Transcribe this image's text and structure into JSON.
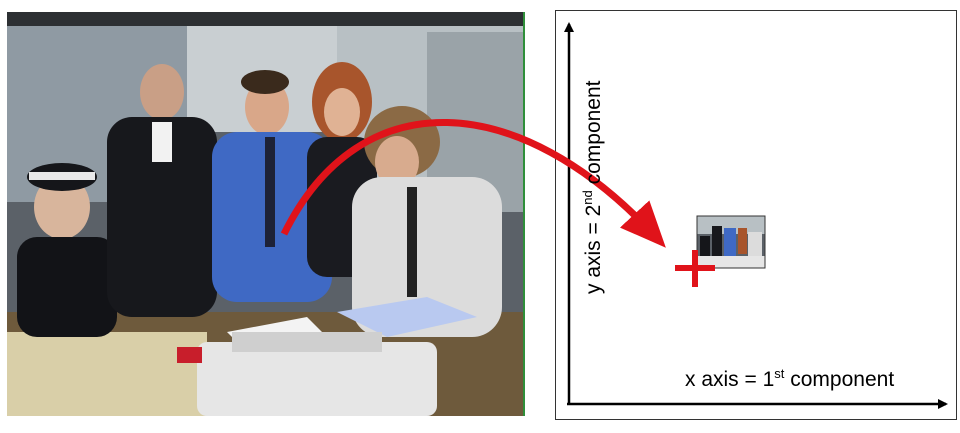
{
  "diagram": {
    "x_axis_label": {
      "prefix": "x axis = 1",
      "sup": "st",
      "suffix": " component"
    },
    "y_axis_label": {
      "prefix": "y axis = 2",
      "sup": "nd",
      "suffix": " component"
    },
    "colors": {
      "arrow": "#e0131a",
      "axis": "#000000",
      "photo_border": "#2f8f3a"
    },
    "icons": [
      "curved-arrow",
      "plus-marker",
      "thumbnail"
    ]
  }
}
